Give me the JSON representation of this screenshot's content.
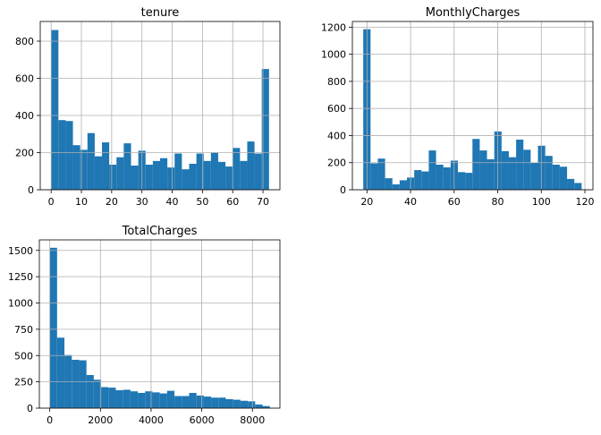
{
  "colors": {
    "bar": "#1f77b4",
    "grid": "#b0b0b0",
    "axis": "#000000"
  },
  "chart_data": [
    {
      "type": "bar",
      "title": "tenure",
      "xlim": [
        -3.6,
        75.6
      ],
      "ylim": [
        0,
        906
      ],
      "bin_edges": [
        0,
        2.4,
        4.8,
        7.2,
        9.6,
        12,
        14.4,
        16.8,
        19.2,
        21.6,
        24,
        26.4,
        28.8,
        31.2,
        33.6,
        36,
        38.4,
        40.8,
        43.2,
        45.6,
        48,
        50.4,
        52.8,
        55.2,
        57.6,
        60,
        62.4,
        64.8,
        67.2,
        69.6,
        72
      ],
      "values": [
        860,
        375,
        370,
        240,
        215,
        305,
        180,
        255,
        135,
        175,
        250,
        130,
        210,
        135,
        155,
        170,
        120,
        195,
        110,
        140,
        195,
        155,
        200,
        150,
        125,
        225,
        155,
        260,
        195,
        650
      ],
      "xticks": [
        0,
        10,
        20,
        30,
        40,
        50,
        60,
        70
      ],
      "yticks": [
        0,
        200,
        400,
        600,
        800
      ],
      "xtick_labels": [
        "0",
        "10",
        "20",
        "30",
        "40",
        "50",
        "60",
        "70"
      ],
      "ytick_labels": [
        "0",
        "200",
        "400",
        "600",
        "800"
      ],
      "grid": true
    },
    {
      "type": "bar",
      "title": "MonthlyCharges",
      "xlim": [
        13.3,
        123.7
      ],
      "ylim": [
        0,
        1242
      ],
      "bin_edges": [
        18.3,
        21.64,
        24.98,
        28.32,
        31.66,
        35,
        38.34,
        41.68,
        45.02,
        48.36,
        51.7,
        55.04,
        58.38,
        61.72,
        65.06,
        68.4,
        71.74,
        75.08,
        78.42,
        81.76,
        85.1,
        88.44,
        91.78,
        95.12,
        98.46,
        101.8,
        105.14,
        108.48,
        111.82,
        115.16,
        118.5
      ],
      "values": [
        1185,
        195,
        230,
        85,
        40,
        70,
        90,
        145,
        135,
        290,
        185,
        165,
        215,
        130,
        125,
        375,
        290,
        225,
        430,
        285,
        240,
        370,
        295,
        200,
        325,
        250,
        185,
        170,
        80,
        50
      ],
      "xticks": [
        20,
        40,
        60,
        80,
        100,
        120
      ],
      "yticks": [
        0,
        200,
        400,
        600,
        800,
        1000,
        1200
      ],
      "xtick_labels": [
        "20",
        "40",
        "60",
        "80",
        "100",
        "120"
      ],
      "ytick_labels": [
        "0",
        "200",
        "400",
        "600",
        "800",
        "1000",
        "1200"
      ],
      "grid": true
    },
    {
      "type": "bar",
      "title": "TotalCharges",
      "xlim": [
        -411,
        9086
      ],
      "ylim": [
        0,
        1600
      ],
      "bin_edges": [
        0,
        289.58,
        579.16,
        868.74,
        1158.32,
        1447.9,
        1737.48,
        2027.06,
        2316.64,
        2606.22,
        2895.8,
        3185.38,
        3474.96,
        3764.54,
        4054.12,
        4343.7,
        4633.28,
        4922.86,
        5212.44,
        5502.02,
        5791.6,
        6081.18,
        6370.76,
        6660.34,
        6949.92,
        7239.5,
        7529.08,
        7818.66,
        8108.24,
        8397.82,
        8687.4
      ],
      "values": [
        1525,
        670,
        505,
        460,
        455,
        315,
        270,
        200,
        195,
        170,
        175,
        160,
        145,
        160,
        150,
        140,
        165,
        115,
        115,
        145,
        120,
        110,
        100,
        100,
        85,
        80,
        70,
        65,
        35,
        20
      ],
      "xticks": [
        0,
        2000,
        4000,
        6000,
        8000
      ],
      "yticks": [
        0,
        250,
        500,
        750,
        1000,
        1250,
        1500
      ],
      "xtick_labels": [
        "0",
        "2000",
        "4000",
        "6000",
        "8000"
      ],
      "ytick_labels": [
        "0",
        "250",
        "500",
        "750",
        "1000",
        "1250",
        "1500"
      ],
      "grid": true
    }
  ]
}
